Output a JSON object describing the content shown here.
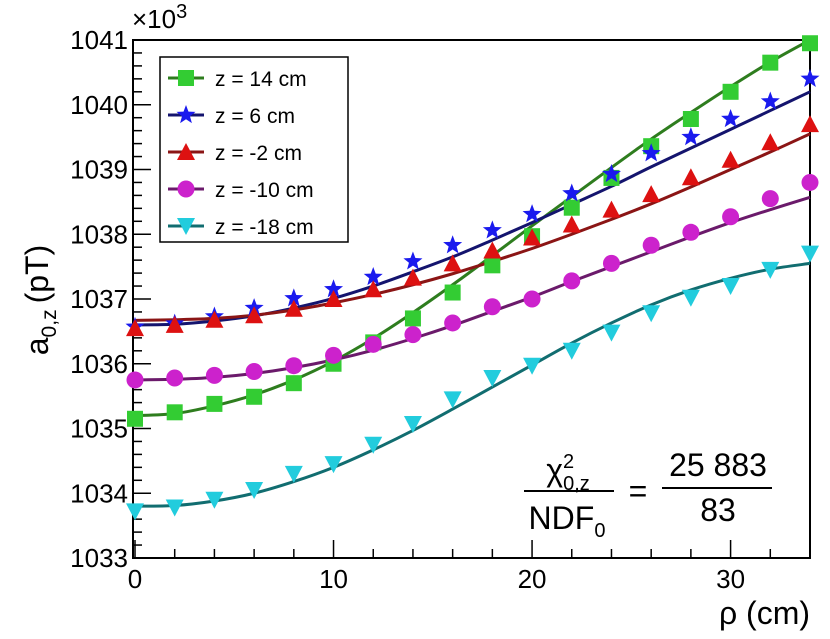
{
  "chart_data": {
    "type": "scatter",
    "title": "",
    "xlabel": "ρ (cm)",
    "ylabel_base": "a",
    "ylabel_sub": "0,z",
    "ylabel_unit": "(pT)",
    "y_scale_label": "×10",
    "y_scale_exp": "3",
    "xlim": [
      0,
      34
    ],
    "ylim": [
      1033,
      1041
    ],
    "x_ticks": [
      0,
      10,
      20,
      30
    ],
    "x_tick_labels": [
      "0",
      "10",
      "20",
      "30"
    ],
    "y_ticks": [
      1033,
      1034,
      1035,
      1036,
      1037,
      1038,
      1039,
      1040,
      1041
    ],
    "y_tick_labels": [
      "1033",
      "1034",
      "1035",
      "1036",
      "1037",
      "1038",
      "1039",
      "1040",
      "1041"
    ],
    "grid": false,
    "legend_position": "top-left",
    "x": [
      0,
      2,
      4,
      6,
      8,
      10,
      12,
      14,
      16,
      18,
      20,
      22,
      24,
      26,
      28,
      30,
      32,
      34
    ],
    "series": [
      {
        "name": "z = 14 cm",
        "color": "#33cc33",
        "line_color": "#2e7d1e",
        "marker": "square",
        "values": [
          1035.15,
          1035.25,
          1035.38,
          1035.49,
          1035.7,
          1036.0,
          1036.33,
          1036.7,
          1037.1,
          1037.52,
          1037.97,
          1038.41,
          1038.87,
          1039.36,
          1039.78,
          1040.2,
          1040.65,
          1040.95
        ],
        "fit": [
          1035.2,
          1035.23,
          1035.35,
          1035.52,
          1035.75,
          1036.04,
          1036.39,
          1036.79,
          1037.22,
          1037.67,
          1038.13,
          1038.58,
          1039.03,
          1039.47,
          1039.88,
          1040.28,
          1040.66,
          1041.0
        ]
      },
      {
        "name": "z = 6 cm",
        "color": "#1a1aee",
        "line_color": "#14146e",
        "marker": "star",
        "values": [
          1036.57,
          1036.62,
          1036.73,
          1036.86,
          1037.01,
          1037.15,
          1037.34,
          1037.58,
          1037.83,
          1038.06,
          1038.31,
          1038.63,
          1038.93,
          1039.25,
          1039.5,
          1039.78,
          1040.05,
          1040.4
        ],
        "fit": [
          1036.6,
          1036.61,
          1036.66,
          1036.74,
          1036.86,
          1037.01,
          1037.2,
          1037.42,
          1037.65,
          1037.91,
          1038.18,
          1038.46,
          1038.74,
          1039.04,
          1039.33,
          1039.62,
          1039.91,
          1040.2
        ]
      },
      {
        "name": "z = -2 cm",
        "color": "#dd1111",
        "line_color": "#8b1515",
        "marker": "triangle-up",
        "values": [
          1036.55,
          1036.6,
          1036.68,
          1036.75,
          1036.85,
          1037.0,
          1037.15,
          1037.33,
          1037.55,
          1037.75,
          1037.95,
          1038.15,
          1038.38,
          1038.62,
          1038.88,
          1039.15,
          1039.42,
          1039.7
        ],
        "fit": [
          1036.67,
          1036.68,
          1036.7,
          1036.75,
          1036.83,
          1036.94,
          1037.07,
          1037.22,
          1037.39,
          1037.58,
          1037.78,
          1038.0,
          1038.23,
          1038.47,
          1038.73,
          1039.0,
          1039.27,
          1039.55
        ]
      },
      {
        "name": "z = -10 cm",
        "color": "#cc22cc",
        "line_color": "#6b1a6b",
        "marker": "circle",
        "values": [
          1035.75,
          1035.78,
          1035.82,
          1035.88,
          1035.97,
          1036.13,
          1036.3,
          1036.45,
          1036.63,
          1036.88,
          1037.0,
          1037.28,
          1037.55,
          1037.83,
          1038.03,
          1038.27,
          1038.55,
          1038.8
        ],
        "fit": [
          1035.75,
          1035.76,
          1035.79,
          1035.85,
          1035.94,
          1036.06,
          1036.21,
          1036.39,
          1036.59,
          1036.81,
          1037.03,
          1037.27,
          1037.5,
          1037.73,
          1037.96,
          1038.18,
          1038.38,
          1038.57
        ]
      },
      {
        "name": "z = -18 cm",
        "color": "#22ccdd",
        "line_color": "#116d70",
        "marker": "triangle-down",
        "values": [
          1033.72,
          1033.78,
          1033.9,
          1034.05,
          1034.3,
          1034.45,
          1034.75,
          1035.07,
          1035.45,
          1035.78,
          1035.97,
          1036.2,
          1036.48,
          1036.78,
          1037.02,
          1037.2,
          1037.45,
          1037.7
        ],
        "fit": [
          1033.8,
          1033.81,
          1033.88,
          1034.0,
          1034.18,
          1034.4,
          1034.67,
          1034.97,
          1035.3,
          1035.64,
          1035.98,
          1036.32,
          1036.63,
          1036.91,
          1037.14,
          1037.32,
          1037.46,
          1037.55
        ]
      }
    ],
    "annotation": {
      "chi_symbol": "χ",
      "chi_sub": "0,z",
      "chi_sup": "2",
      "ndf_text": "NDF",
      "ndf_sub": "0",
      "equals": "=",
      "numerator": "25 883",
      "denominator": "83"
    }
  }
}
